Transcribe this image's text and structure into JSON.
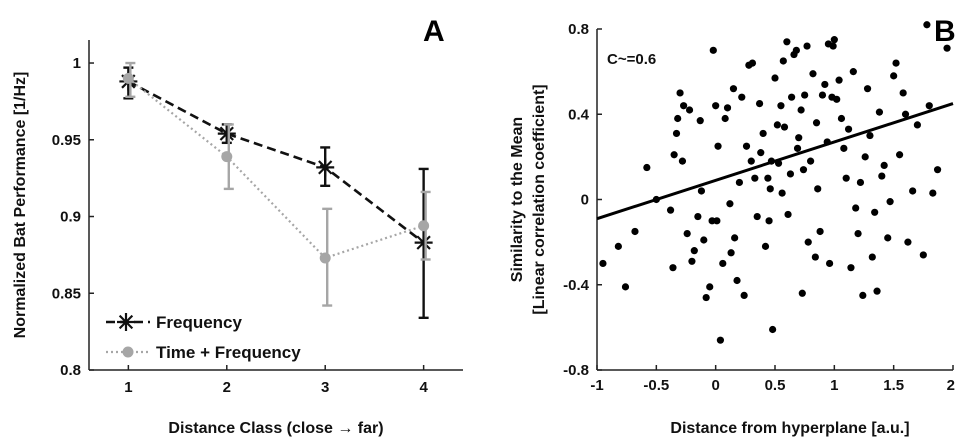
{
  "chart_data": [
    {
      "type": "line",
      "panel_label": "A",
      "xlabel": "Distance Class (close → far)",
      "ylabel": "Normalized Bat Performance [1/Hz]",
      "x": [
        1,
        2,
        3,
        4
      ],
      "xticks": [
        "1",
        "2",
        "3",
        "4"
      ],
      "xlim": [
        0.6,
        4.4
      ],
      "ylim": [
        0.8,
        1.015
      ],
      "yticks": [
        0.8,
        0.85,
        0.9,
        0.95,
        1
      ],
      "ytick_labels": [
        "0.8",
        "0.85",
        "0.9",
        "0.95",
        "1"
      ],
      "legend_position": "bottom-left",
      "series": [
        {
          "name": "Frequency",
          "color": "#111111",
          "line_style": "dashed",
          "marker": "asterisk",
          "values": [
            0.988,
            0.954,
            0.932,
            0.883
          ],
          "err_low": [
            0.977,
            0.948,
            0.92,
            0.834
          ],
          "err_high": [
            0.997,
            0.96,
            0.945,
            0.931
          ]
        },
        {
          "name": "Time + Frequency",
          "color": "#a6a6a6",
          "line_style": "dotted",
          "marker": "circle",
          "values": [
            0.99,
            0.939,
            0.873,
            0.894
          ],
          "err_low": [
            0.978,
            0.918,
            0.842,
            0.872
          ],
          "err_high": [
            1.0,
            0.96,
            0.905,
            0.916
          ]
        }
      ]
    },
    {
      "type": "scatter",
      "panel_label": "B",
      "annotation": "C~=0.6",
      "xlabel": "Distance from hyperplane [a.u.]",
      "ylabel_line1": "Similarity to the Mean",
      "ylabel_line2": "[Linear correlation coefficient]",
      "xlim": [
        -1,
        2
      ],
      "ylim": [
        -0.8,
        0.8
      ],
      "xticks": [
        -1,
        -0.5,
        0,
        0.5,
        1,
        1.5,
        2
      ],
      "xtick_labels": [
        "-1",
        "-0.5",
        "0",
        "0.5",
        "1",
        "1.5",
        "2"
      ],
      "yticks": [
        -0.8,
        -0.4,
        0,
        0.4,
        0.8
      ],
      "ytick_labels": [
        "-0.8",
        "-0.4",
        "0",
        "0.4",
        "0.8"
      ],
      "point_color": "#000000",
      "regression_line": {
        "x": [
          -1,
          2
        ],
        "y": [
          -0.09,
          0.45
        ]
      },
      "points": [
        [
          -0.95,
          -0.3
        ],
        [
          -0.82,
          -0.22
        ],
        [
          -0.76,
          -0.41
        ],
        [
          -0.68,
          -0.15
        ],
        [
          -0.58,
          0.15
        ],
        [
          -0.5,
          0.0
        ],
        [
          -0.38,
          -0.05
        ],
        [
          -0.36,
          -0.32
        ],
        [
          -0.35,
          0.21
        ],
        [
          -0.33,
          0.31
        ],
        [
          -0.32,
          0.38
        ],
        [
          -0.3,
          0.5
        ],
        [
          -0.28,
          0.18
        ],
        [
          -0.27,
          0.44
        ],
        [
          -0.24,
          -0.16
        ],
        [
          -0.22,
          0.42
        ],
        [
          -0.2,
          -0.29
        ],
        [
          -0.18,
          -0.24
        ],
        [
          -0.15,
          -0.08
        ],
        [
          -0.13,
          0.37
        ],
        [
          -0.12,
          0.04
        ],
        [
          -0.1,
          -0.19
        ],
        [
          -0.08,
          -0.46
        ],
        [
          -0.05,
          -0.41
        ],
        [
          -0.03,
          -0.1
        ],
        [
          -0.02,
          0.7
        ],
        [
          0.0,
          0.44
        ],
        [
          0.01,
          -0.1
        ],
        [
          0.02,
          0.25
        ],
        [
          0.04,
          -0.66
        ],
        [
          0.06,
          -0.3
        ],
        [
          0.08,
          0.38
        ],
        [
          0.1,
          0.43
        ],
        [
          0.12,
          -0.02
        ],
        [
          0.13,
          -0.25
        ],
        [
          0.15,
          0.52
        ],
        [
          0.16,
          -0.18
        ],
        [
          0.18,
          -0.38
        ],
        [
          0.2,
          0.08
        ],
        [
          0.22,
          0.48
        ],
        [
          0.24,
          -0.45
        ],
        [
          0.26,
          0.25
        ],
        [
          0.28,
          0.63
        ],
        [
          0.3,
          0.18
        ],
        [
          0.31,
          0.64
        ],
        [
          0.33,
          0.1
        ],
        [
          0.35,
          -0.08
        ],
        [
          0.37,
          0.45
        ],
        [
          0.38,
          0.22
        ],
        [
          0.4,
          0.31
        ],
        [
          0.42,
          -0.22
        ],
        [
          0.44,
          0.1
        ],
        [
          0.45,
          -0.1
        ],
        [
          0.46,
          0.05
        ],
        [
          0.47,
          0.18
        ],
        [
          0.48,
          -0.61
        ],
        [
          0.5,
          0.57
        ],
        [
          0.52,
          0.35
        ],
        [
          0.53,
          0.17
        ],
        [
          0.55,
          0.44
        ],
        [
          0.56,
          0.03
        ],
        [
          0.57,
          0.65
        ],
        [
          0.58,
          0.34
        ],
        [
          0.6,
          0.74
        ],
        [
          0.61,
          -0.07
        ],
        [
          0.63,
          0.12
        ],
        [
          0.64,
          0.48
        ],
        [
          0.66,
          0.68
        ],
        [
          0.68,
          0.7
        ],
        [
          0.69,
          0.24
        ],
        [
          0.7,
          0.29
        ],
        [
          0.72,
          0.42
        ],
        [
          0.73,
          -0.44
        ],
        [
          0.74,
          0.14
        ],
        [
          0.75,
          0.49
        ],
        [
          0.77,
          0.72
        ],
        [
          0.78,
          -0.2
        ],
        [
          0.8,
          0.18
        ],
        [
          0.82,
          0.59
        ],
        [
          0.84,
          -0.27
        ],
        [
          0.85,
          0.36
        ],
        [
          0.86,
          0.05
        ],
        [
          0.88,
          -0.15
        ],
        [
          0.9,
          0.49
        ],
        [
          0.92,
          0.54
        ],
        [
          0.94,
          0.27
        ],
        [
          0.95,
          0.73
        ],
        [
          0.96,
          -0.3
        ],
        [
          0.98,
          0.48
        ],
        [
          0.99,
          0.72
        ],
        [
          1.0,
          0.75
        ],
        [
          1.02,
          0.47
        ],
        [
          1.04,
          0.56
        ],
        [
          1.06,
          0.38
        ],
        [
          1.08,
          0.24
        ],
        [
          1.1,
          0.1
        ],
        [
          1.12,
          0.33
        ],
        [
          1.14,
          -0.32
        ],
        [
          1.16,
          0.6
        ],
        [
          1.18,
          -0.04
        ],
        [
          1.2,
          -0.16
        ],
        [
          1.22,
          0.08
        ],
        [
          1.24,
          -0.45
        ],
        [
          1.26,
          0.2
        ],
        [
          1.28,
          0.52
        ],
        [
          1.3,
          0.3
        ],
        [
          1.32,
          -0.27
        ],
        [
          1.34,
          -0.06
        ],
        [
          1.36,
          -0.43
        ],
        [
          1.38,
          0.41
        ],
        [
          1.4,
          0.11
        ],
        [
          1.42,
          0.16
        ],
        [
          1.45,
          -0.18
        ],
        [
          1.47,
          -0.01
        ],
        [
          1.5,
          0.58
        ],
        [
          1.52,
          0.64
        ],
        [
          1.55,
          0.21
        ],
        [
          1.58,
          0.5
        ],
        [
          1.6,
          0.4
        ],
        [
          1.62,
          -0.2
        ],
        [
          1.66,
          0.04
        ],
        [
          1.7,
          0.35
        ],
        [
          1.75,
          -0.26
        ],
        [
          1.78,
          0.82
        ],
        [
          1.8,
          0.44
        ],
        [
          1.83,
          0.03
        ],
        [
          1.87,
          0.14
        ],
        [
          1.95,
          0.71
        ]
      ]
    }
  ]
}
